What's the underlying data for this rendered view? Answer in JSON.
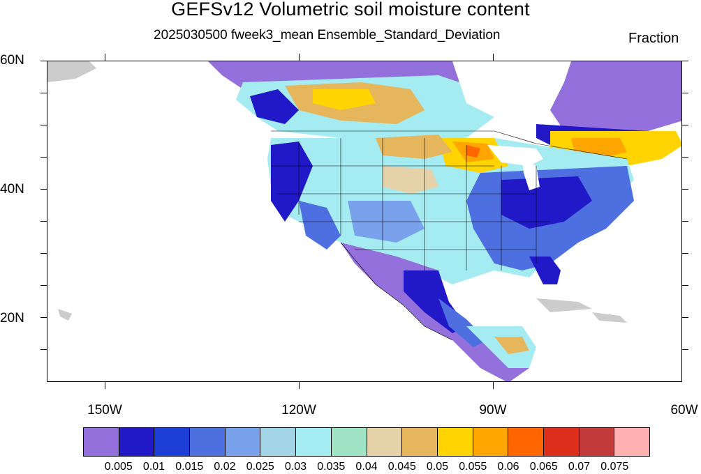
{
  "title": "GEFSv12 Volumetric soil moisture content",
  "subtitle": "2025030500 fweek3_mean Ensemble_Standard_Deviation",
  "units": "Fraction",
  "lat_labels": [
    "60N",
    "40N",
    "20N"
  ],
  "lon_labels": [
    "150W",
    "120W",
    "90W",
    "60W"
  ],
  "colorbar": {
    "colors": [
      "#9370db",
      "#2119c8",
      "#1e3ed8",
      "#4d6fe0",
      "#7aa1ec",
      "#a2d4e6",
      "#a5ecf2",
      "#9ee3c4",
      "#e6d2a8",
      "#e6b65c",
      "#ffd400",
      "#ffa500",
      "#ff6600",
      "#dd2e1c",
      "#c33a3a",
      "#ffb0b0"
    ],
    "labels": [
      "0.005",
      "0.01",
      "0.015",
      "0.02",
      "0.025",
      "0.03",
      "0.035",
      "0.04",
      "0.045",
      "0.05",
      "0.055",
      "0.06",
      "0.065",
      "0.07",
      "0.075"
    ]
  },
  "map": {
    "extent": {
      "lon_min": -159,
      "lon_max": -60,
      "lat_min": 10,
      "lat_max": 60
    }
  }
}
